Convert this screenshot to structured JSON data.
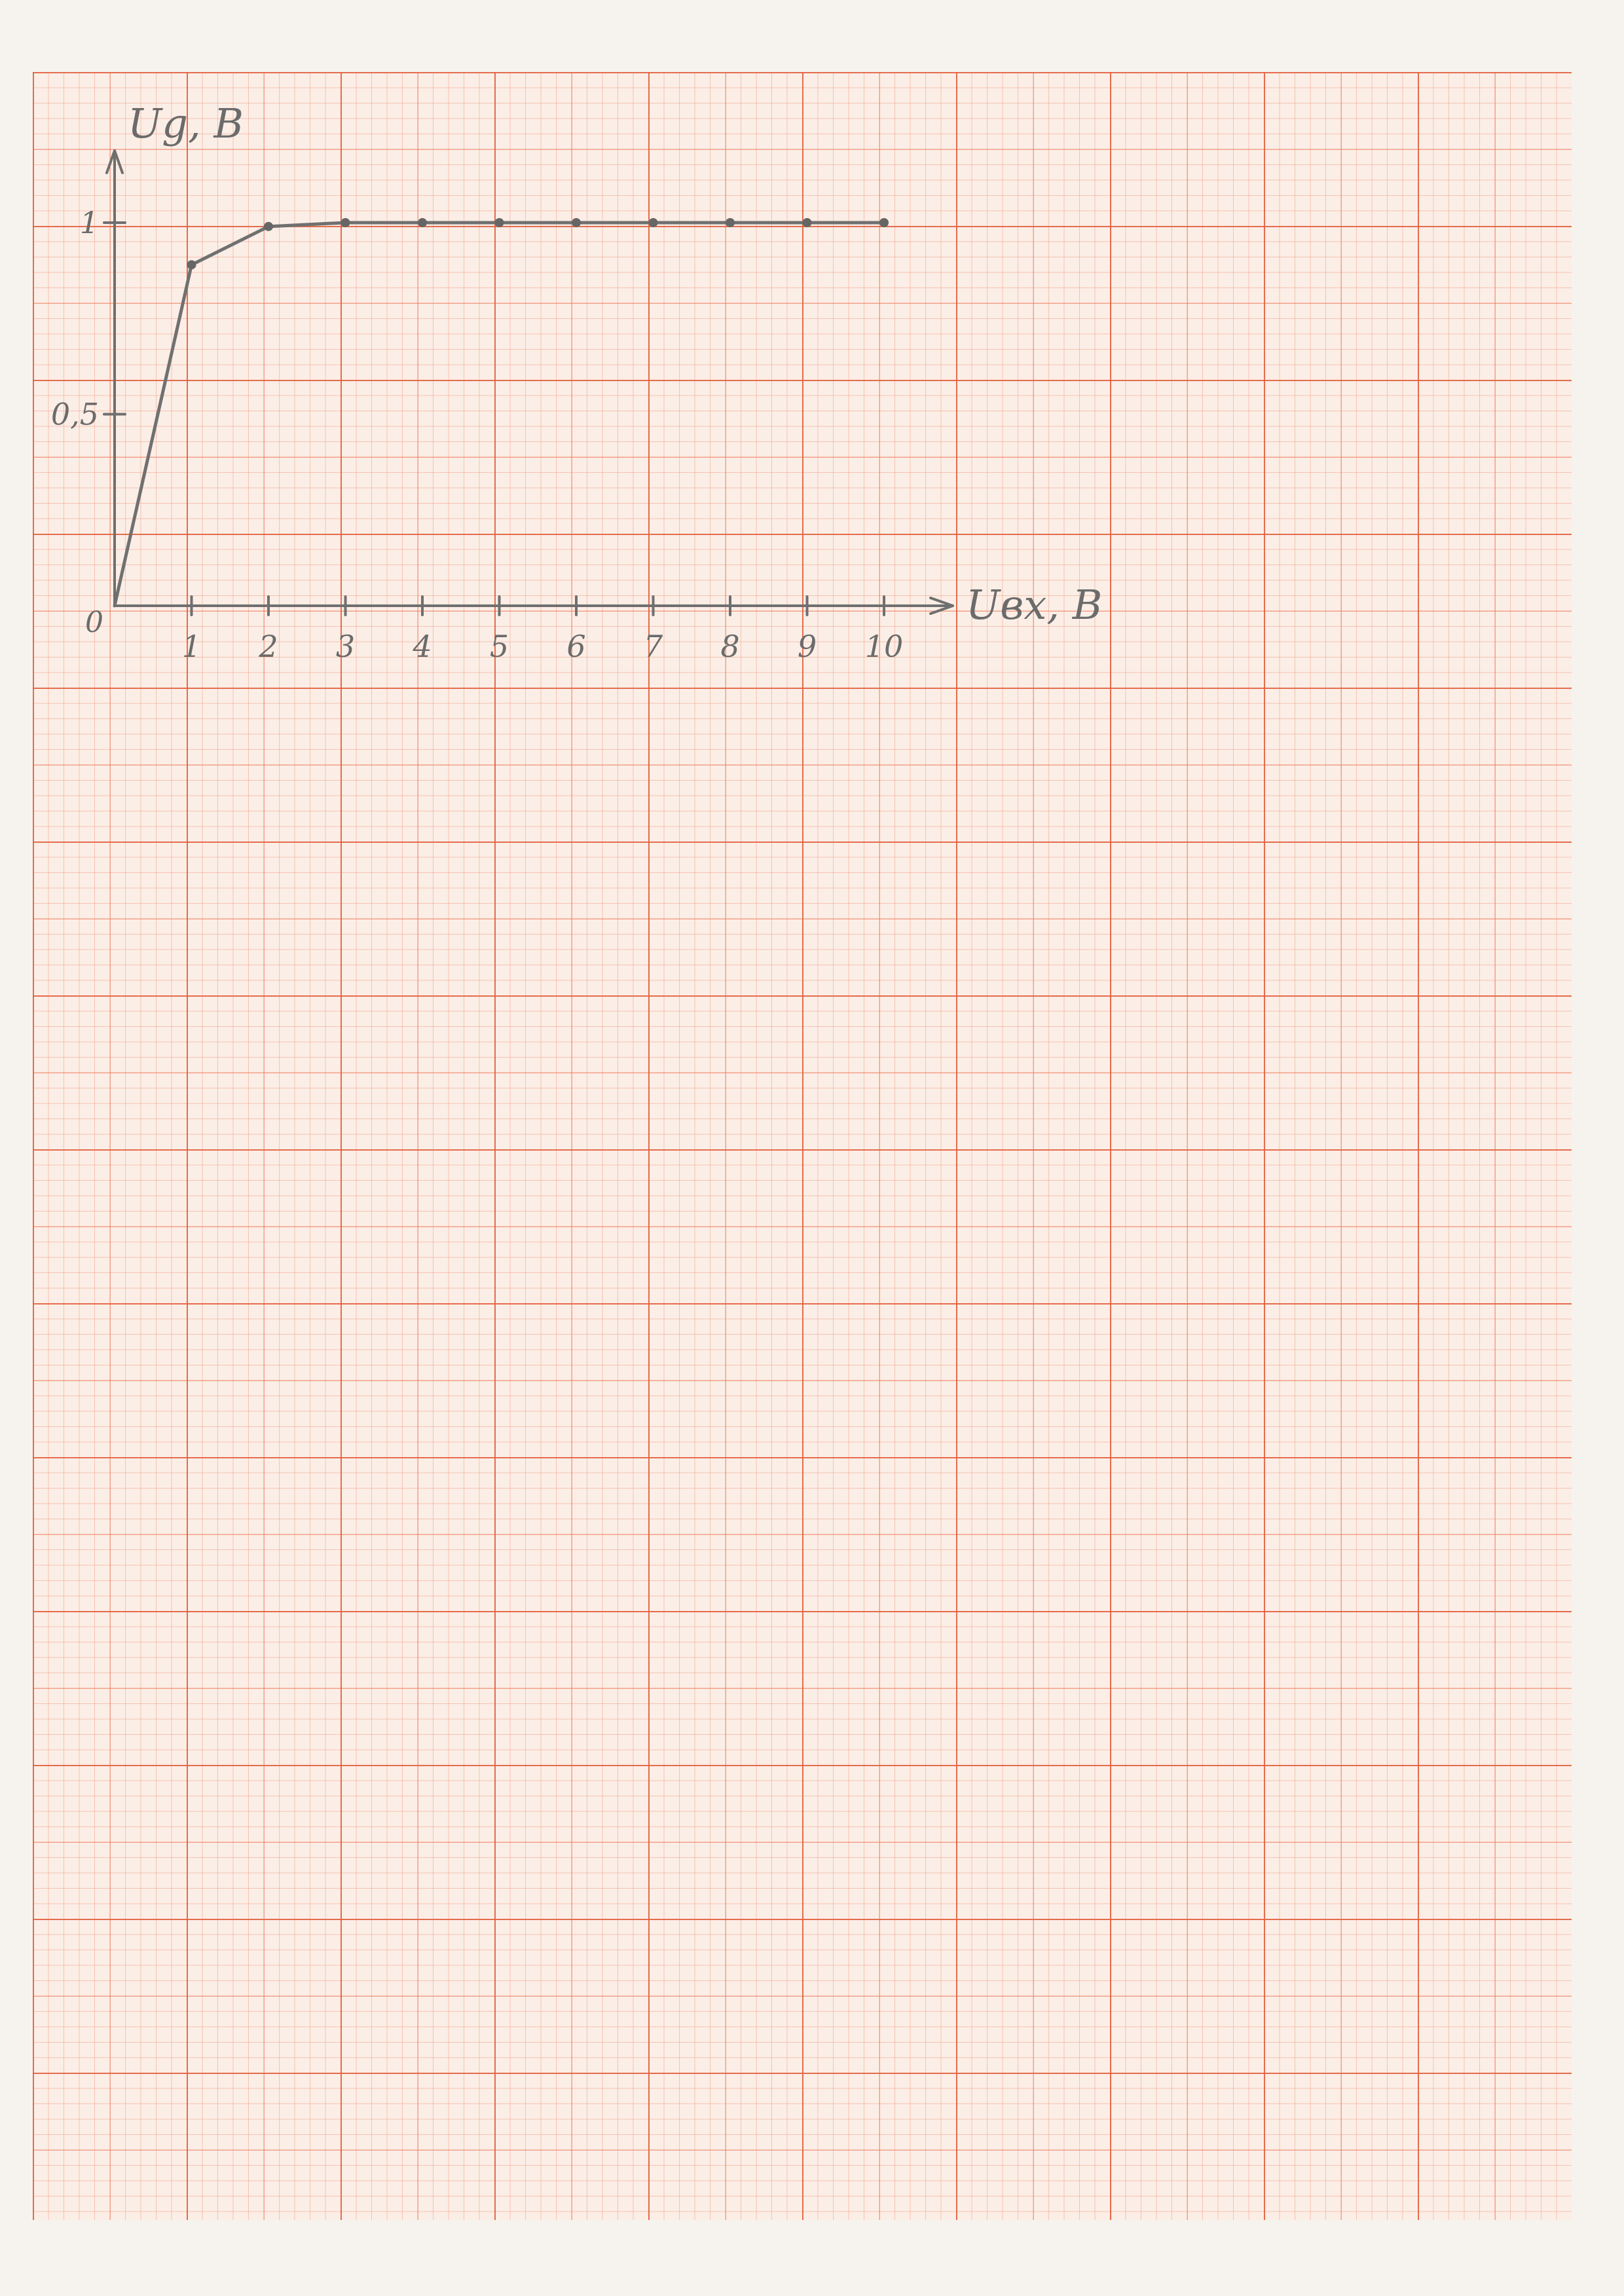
{
  "chart_data": {
    "type": "line",
    "title": "",
    "xlabel": "Uвх, B",
    "ylabel": "Ug, B",
    "x": [
      0,
      1,
      2,
      3,
      4,
      5,
      6,
      7,
      8,
      9,
      10
    ],
    "y": [
      0,
      0.89,
      0.99,
      1.0,
      1.0,
      1.0,
      1.0,
      1.0,
      1.0,
      1.0,
      1.0
    ],
    "x_ticks": [
      "1",
      "2",
      "3",
      "4",
      "5",
      "6",
      "7",
      "8",
      "9",
      "10"
    ],
    "y_ticks": [
      "0,5",
      "1"
    ],
    "origin_label": "0",
    "xlim": [
      0,
      10
    ],
    "ylim": [
      0,
      1
    ],
    "grid": true,
    "colors": {
      "line": "#707070",
      "grid": "#e2603e",
      "paper": "#fbeee6"
    }
  }
}
